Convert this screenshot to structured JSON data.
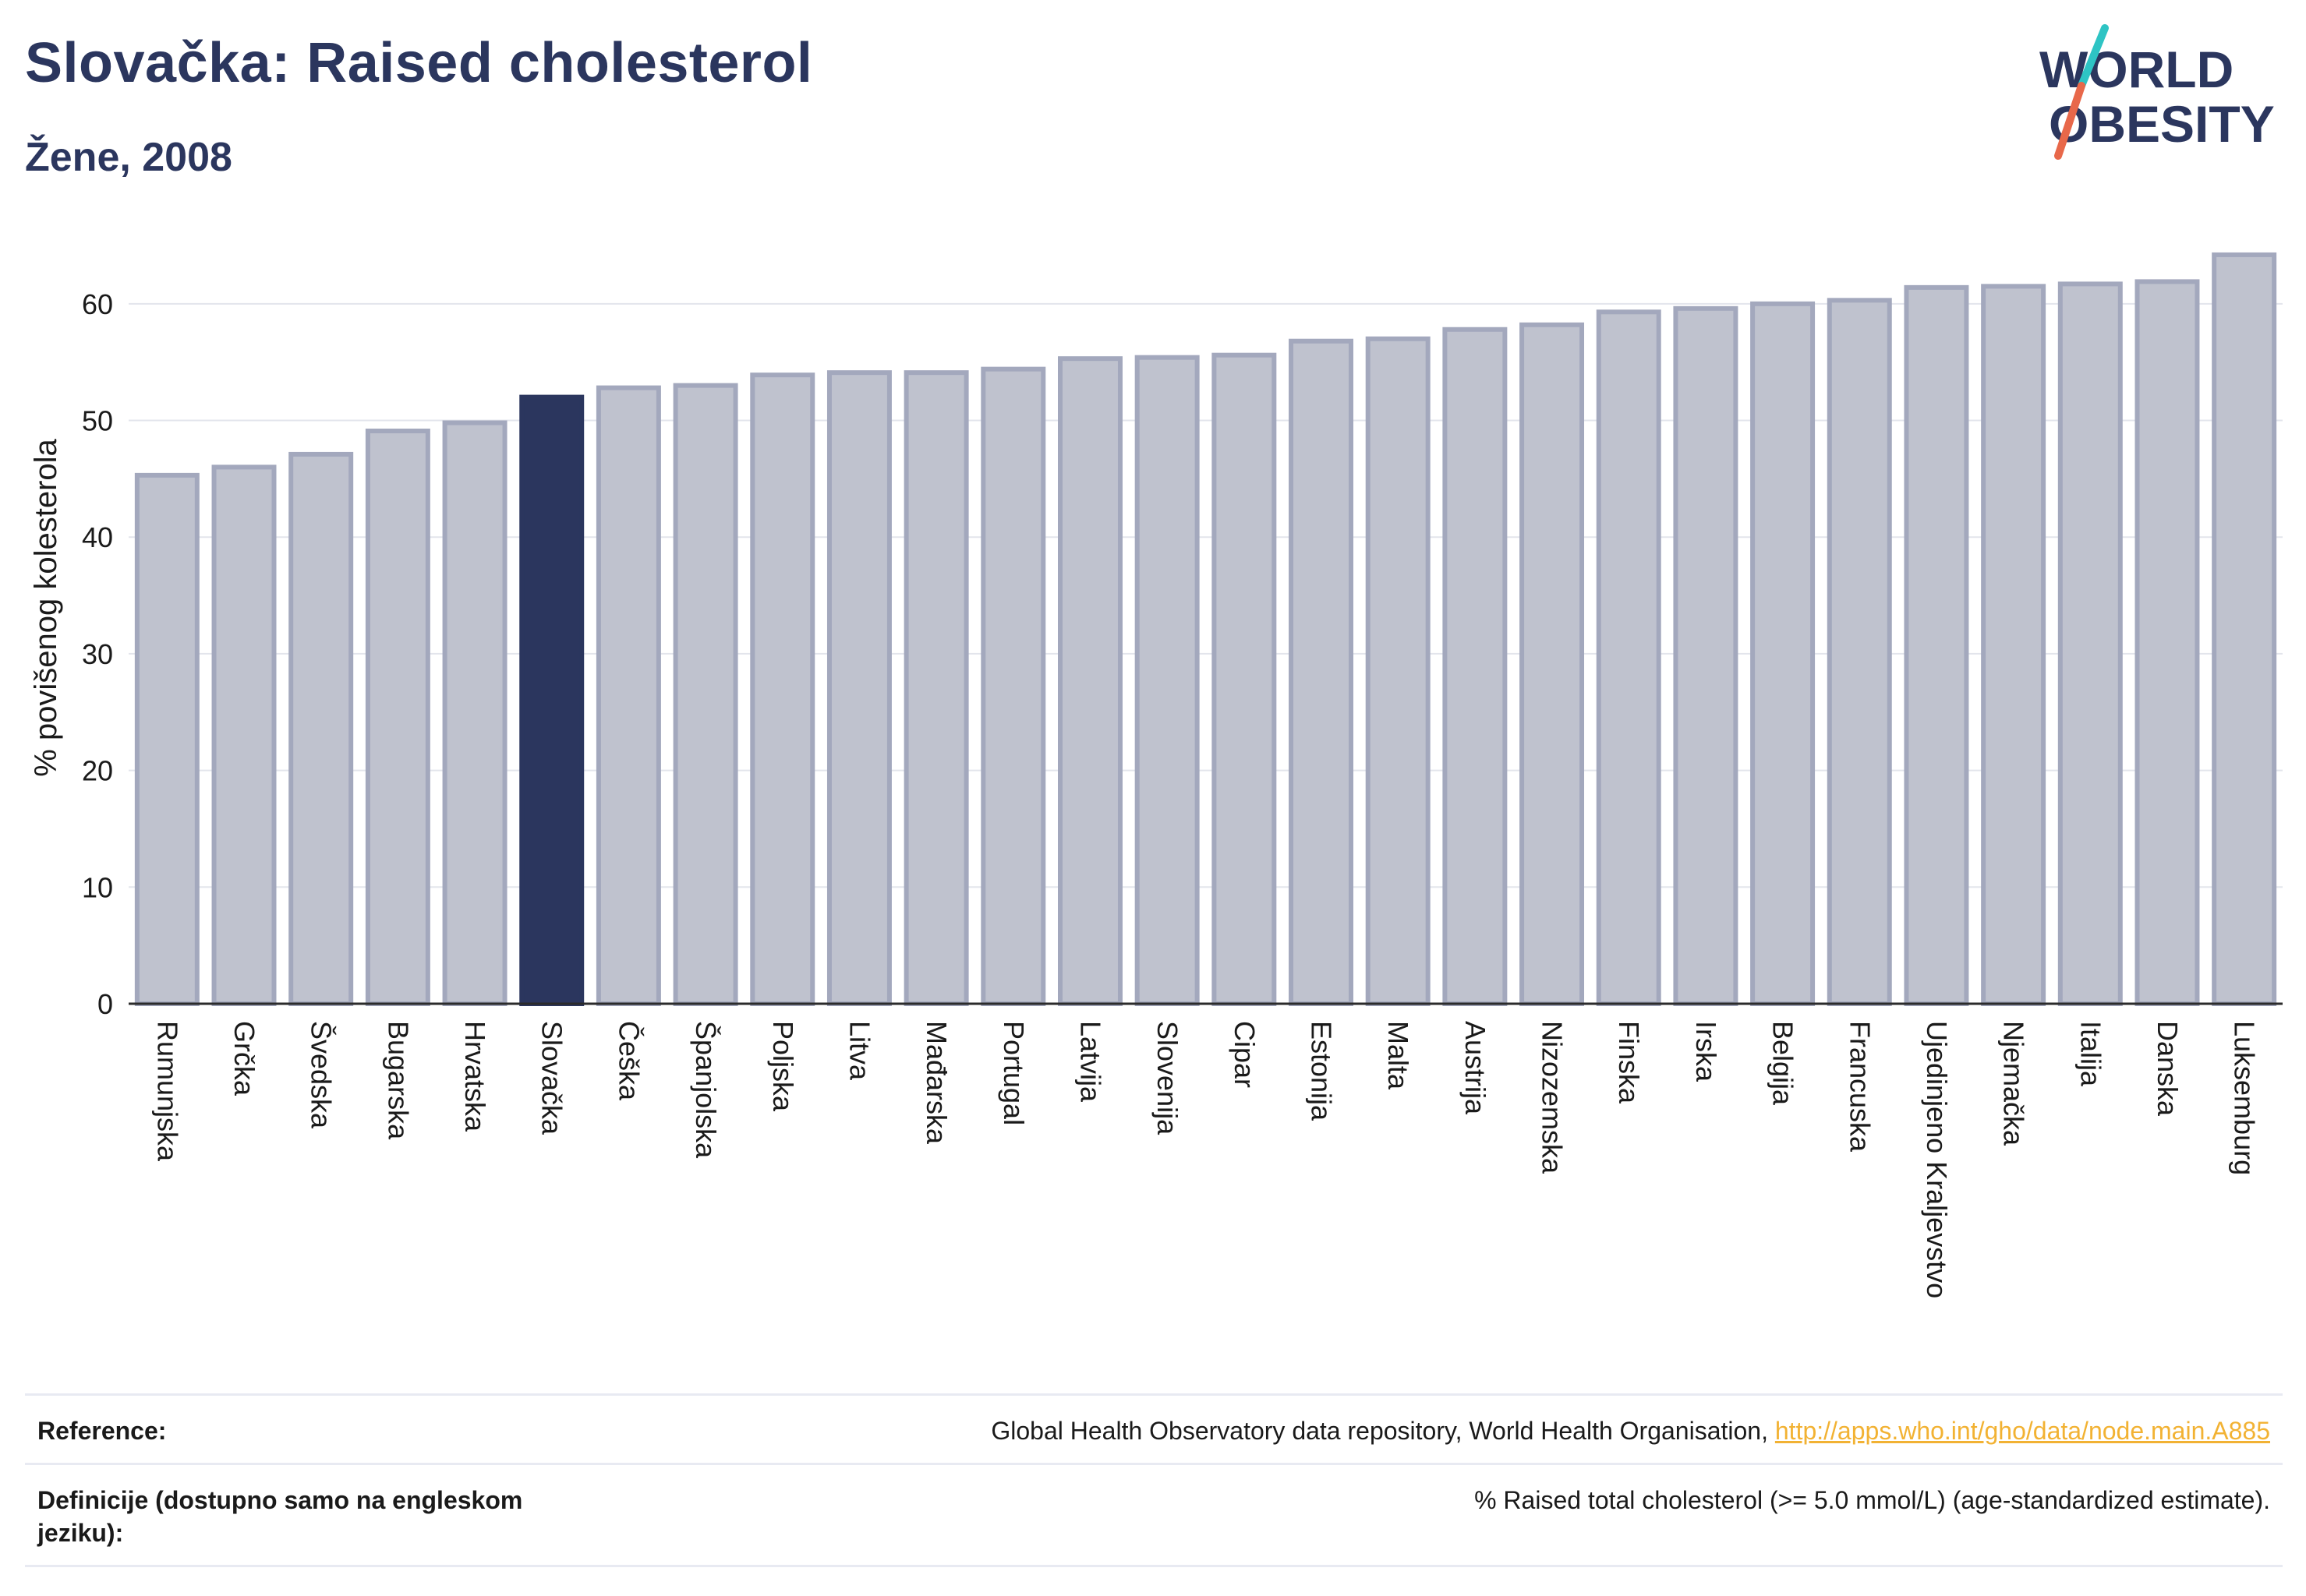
{
  "header": {
    "title": "Slovačka: Raised cholesterol",
    "subtitle": "Žene, 2008"
  },
  "logo": {
    "line1": "WORLD",
    "line2": "OBESITY",
    "accent_colors": [
      "#2ec4c4",
      "#e8684a"
    ]
  },
  "chart_data": {
    "type": "bar",
    "categories": [
      "Rumunjska",
      "Grčka",
      "Švedska",
      "Bugarska",
      "Hrvatska",
      "Slovačka",
      "Češka",
      "Španjolska",
      "Poljska",
      "Litva",
      "Mađarska",
      "Portugal",
      "Latvija",
      "Slovenija",
      "Cipar",
      "Estonija",
      "Malta",
      "Austrija",
      "Nizozemska",
      "Finska",
      "Irska",
      "Belgija",
      "Francuska",
      "Ujedinjeno Kraljevstvo",
      "Njemačka",
      "Italija",
      "Danska",
      "Luksemburg"
    ],
    "values": [
      45.3,
      46.0,
      47.1,
      49.1,
      49.8,
      52.0,
      52.8,
      53.0,
      53.9,
      54.1,
      54.1,
      54.4,
      55.3,
      55.4,
      55.6,
      56.8,
      57.0,
      57.8,
      58.2,
      59.3,
      59.6,
      60.0,
      60.3,
      61.4,
      61.5,
      61.7,
      61.9,
      64.2
    ],
    "highlight": "Slovačka",
    "ylabel": "% povišenog kolesterola",
    "xlabel": "",
    "ylim": [
      0,
      66
    ],
    "yticks": [
      0,
      10,
      20,
      30,
      40,
      50,
      60
    ],
    "grid": true,
    "colors": {
      "bar": "#bfc2ce",
      "bar_border": "#a3a8bd",
      "highlight": "#2b365e",
      "grid": "#e3e5ec",
      "axis": "#2b2b2b"
    }
  },
  "reference": {
    "rows": [
      {
        "label": "Reference:",
        "value": "Global Health Observatory data repository, World Health Organisation, ",
        "link": "http://apps.who.int/gho/data/node.main.A885"
      },
      {
        "label": "Definicije (dostupno samo na engleskom jeziku):",
        "value": "% Raised total cholesterol (>= 5.0 mmol/L) (age-standardized estimate).",
        "link": ""
      }
    ]
  }
}
